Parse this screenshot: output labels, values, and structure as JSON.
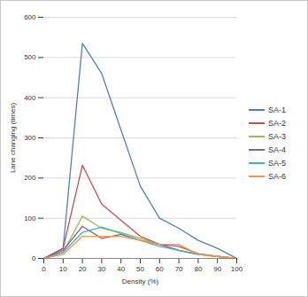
{
  "chart_data": {
    "type": "line",
    "x_label": "Density (%)",
    "y_label": "Lane changing (times)",
    "x": [
      0,
      10,
      20,
      30,
      40,
      50,
      60,
      70,
      80,
      90,
      100
    ],
    "xlim": [
      0,
      100
    ],
    "xticks": [
      0,
      10,
      20,
      30,
      40,
      50,
      60,
      70,
      80,
      90,
      100
    ],
    "ylim": [
      0,
      600
    ],
    "yticks": [
      0,
      100,
      200,
      300,
      400,
      500,
      600
    ],
    "grid": true,
    "legend": "right",
    "series": [
      {
        "name": "SA-1",
        "color": "#4f81bd",
        "values": [
          0,
          25,
          535,
          460,
          320,
          180,
          100,
          75,
          45,
          25,
          0
        ]
      },
      {
        "name": "SA-2",
        "color": "#c0504d",
        "values": [
          0,
          25,
          232,
          135,
          95,
          55,
          35,
          30,
          12,
          5,
          0
        ]
      },
      {
        "name": "SA-3",
        "color": "#9bbb59",
        "values": [
          0,
          15,
          105,
          75,
          65,
          50,
          35,
          20,
          10,
          5,
          0
        ]
      },
      {
        "name": "SA-4",
        "color": "#8064a2",
        "values": [
          0,
          20,
          80,
          50,
          60,
          45,
          35,
          20,
          10,
          5,
          0
        ]
      },
      {
        "name": "SA-5",
        "color": "#4bacc6",
        "values": [
          0,
          15,
          65,
          78,
          62,
          45,
          30,
          20,
          10,
          5,
          0
        ]
      },
      {
        "name": "SA-6",
        "color": "#f79646",
        "values": [
          0,
          10,
          55,
          55,
          55,
          45,
          35,
          35,
          10,
          5,
          0
        ]
      }
    ]
  }
}
